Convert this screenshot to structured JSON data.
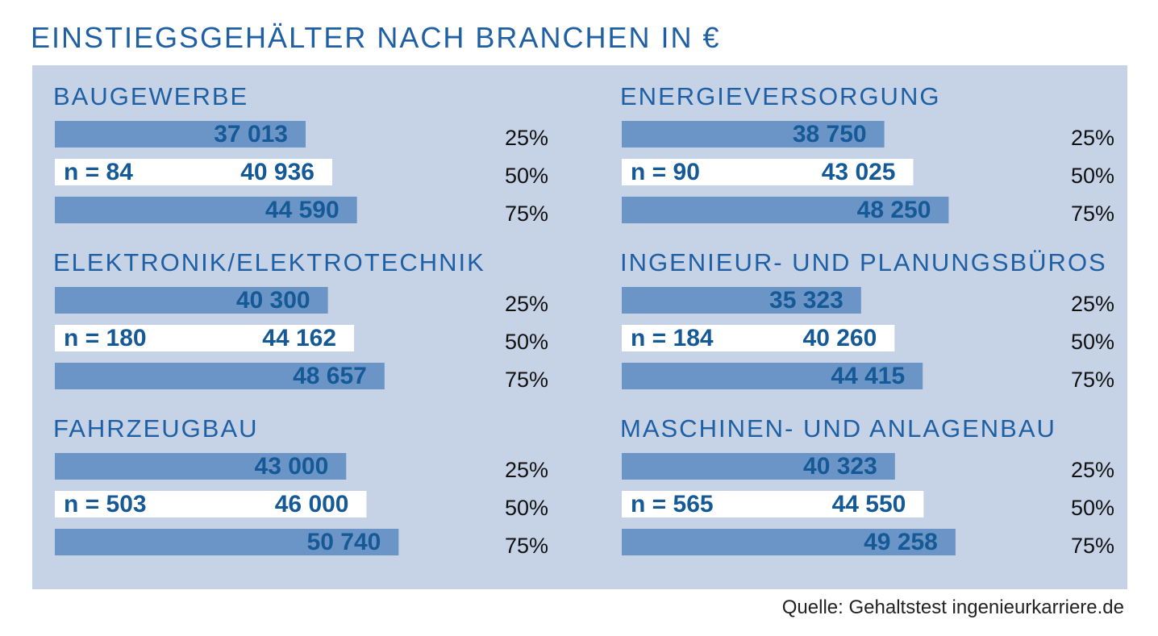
{
  "title": "EINSTIEGSGEHÄLTER NACH BRANCHEN IN €",
  "source": "Quelle: Gehaltstest ingenieurkarriere.de",
  "colors": {
    "background_panel": "#c6d3e7",
    "bar_fill": "#6a95c6",
    "median_bar_fill": "#ffffff",
    "heading": "#1f5fa3",
    "value_text": "#155a96"
  },
  "chart_data": {
    "type": "bar",
    "percentile_labels": [
      "25%",
      "50%",
      "75%"
    ],
    "industries": [
      {
        "name": "BAUGEWERBE",
        "n_label": "n = 84",
        "values": [
          37013
        ],
        "v50": 40936,
        "v75": 44590,
        "labels": [
          "37 013",
          "40 936",
          "44 590"
        ]
      },
      {
        "name": "ELEKTRONIK/ELEKTROTECHNIK",
        "n_label": "n = 180",
        "values": [
          40300
        ],
        "v50": 44162,
        "v75": 48657,
        "labels": [
          "40 300",
          "44 162",
          "48 657"
        ]
      },
      {
        "name": "FAHRZEUGBAU",
        "n_label": "n = 503",
        "values": [
          43000
        ],
        "v50": 46000,
        "v75": 50740,
        "labels": [
          "43 000",
          "46 000",
          "50 740"
        ]
      },
      {
        "name": "ENERGIEVERSORGUNG",
        "n_label": "n = 90",
        "values": [
          38750
        ],
        "v50": 43025,
        "v75": 48250,
        "labels": [
          "38 750",
          "43 025",
          "48 250"
        ]
      },
      {
        "name": "INGENIEUR- UND PLANUNGSBÜROS",
        "n_label": "n = 184",
        "values": [
          35323
        ],
        "v50": 40260,
        "v75": 44415,
        "labels": [
          "35 323",
          "40 260",
          "44 415"
        ]
      },
      {
        "name": "MASCHINEN- UND ANLAGENBAU",
        "n_label": "n = 565",
        "values": [
          40323
        ],
        "v50": 44550,
        "v75": 49258,
        "labels": [
          "40 323",
          "44 550",
          "49 258"
        ]
      }
    ]
  }
}
